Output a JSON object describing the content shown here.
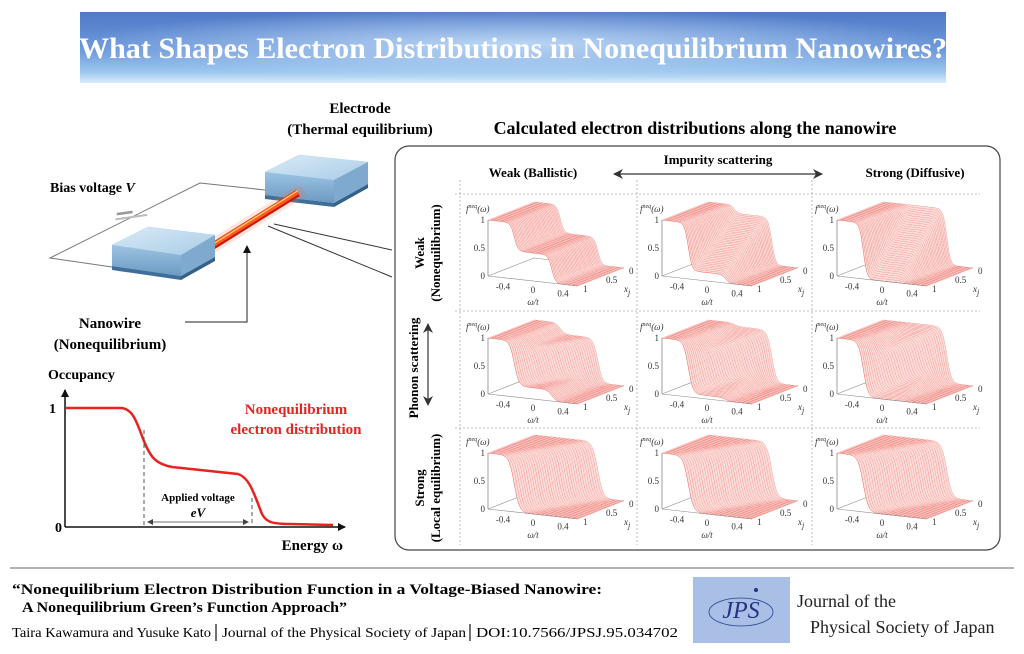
{
  "title": "What Shapes Electron Distributions in Nonequilibrium Nanowires?",
  "schematic": {
    "electrode": "Electrode",
    "electrode_state": "(Thermal equilibrium)",
    "bias": "Bias voltage ",
    "bias_symbol": "V",
    "nanowire": "Nanowire",
    "nanowire_state": "(Nonequilibrium)"
  },
  "occupancy_plot": {
    "ylabel": "Occupancy",
    "xlabel": "Energy ω",
    "y_ticks": [
      "1",
      "0"
    ],
    "annotation": "Applied voltage",
    "annotation_symbol": "eV",
    "legend_line1": "Nonequilibrium",
    "legend_line2": "electron distribution",
    "curve_color": "#e8231f"
  },
  "results": {
    "title": "Calculated electron distributions along the nanowire",
    "impurity_label": "Impurity scattering",
    "col_headers": [
      "Weak (Ballistic)",
      "Strong (Diffusive)"
    ],
    "phonon_label": "Phonon scattering",
    "row_headers": [
      {
        "line1": "Weak",
        "line2": "(Nonequilibrium)"
      },
      {
        "line1": "Strong",
        "line2": "(Local equilibrium)"
      }
    ],
    "axes": {
      "z_label_base": "f",
      "z_label_sub": "j",
      "z_label_sup": "neq",
      "z_label_arg": "(ω)",
      "z_ticks": [
        "0",
        "0.5",
        "1"
      ],
      "omega_ticks": [
        "-0.4",
        "0",
        "0.4"
      ],
      "omega_label": "ω/t",
      "x_ticks": [
        "1",
        "0.5",
        "0"
      ],
      "x_label_base": "x",
      "x_label_sub": "j"
    },
    "surface_color": "#e8473f",
    "surface_fill": "#fcdcd8"
  },
  "citation": {
    "title_line1": "“Nonequilibrium Electron Distribution Function in a Voltage-Biased Nanowire:",
    "title_line2": "A Nonequilibrium Green’s Function Approach”",
    "authors": "Taira Kawamura and Yusuke Kato",
    "journal": "Journal of the Physical Society of Japan",
    "doi": "DOI:10.7566/JPSJ.95.034702"
  },
  "journal": {
    "logo_text": "JPS",
    "logo_color": "#a9bfe6",
    "name_line1": "Journal of the",
    "name_line2": "Physical Society of Japan"
  }
}
